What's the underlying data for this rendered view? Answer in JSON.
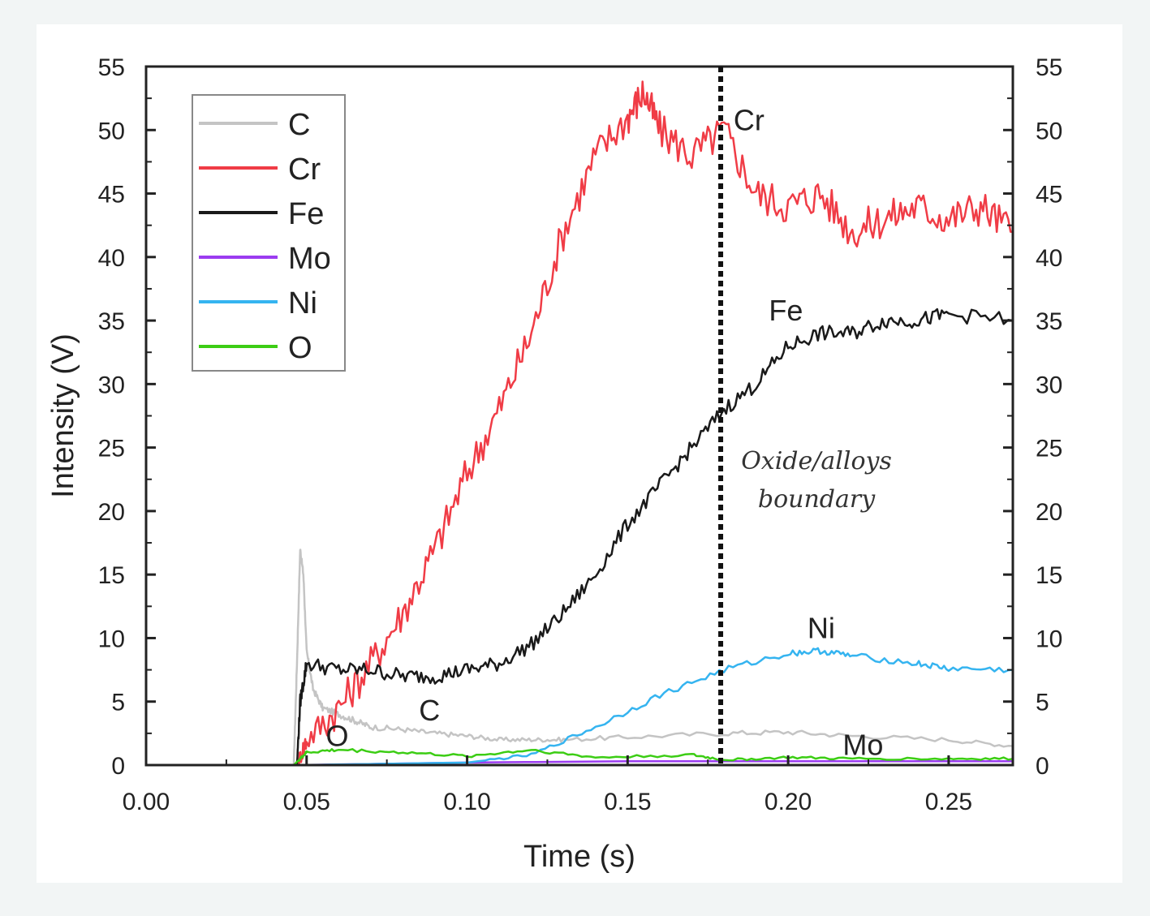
{
  "chart_data": {
    "type": "line",
    "title": "",
    "xlabel": "Time (s)",
    "ylabel": "Intensity (V)",
    "xlim": [
      0.0,
      0.27
    ],
    "ylim": [
      0,
      55
    ],
    "xticks": [
      "0.00",
      "0.05",
      "0.10",
      "0.15",
      "0.20",
      "0.25"
    ],
    "yticks": [
      "0",
      "5",
      "10",
      "15",
      "20",
      "25",
      "30",
      "35",
      "40",
      "45",
      "50",
      "55"
    ],
    "series": [
      {
        "name": "C",
        "color": "#c4c4c4",
        "x": [
          0.046,
          0.047,
          0.048,
          0.049,
          0.05,
          0.052,
          0.055,
          0.06,
          0.065,
          0.07,
          0.08,
          0.09,
          0.1,
          0.11,
          0.12,
          0.13,
          0.15,
          0.18,
          0.2,
          0.22,
          0.25,
          0.27
        ],
        "y": [
          0,
          8,
          17,
          15,
          9,
          6,
          4.5,
          4,
          3.5,
          3,
          2.8,
          2.5,
          2.3,
          2.0,
          2.0,
          2.0,
          2.2,
          2.5,
          2.6,
          2.3,
          2.0,
          1.5
        ]
      },
      {
        "name": "Cr",
        "color": "#f03c46",
        "x": [
          0.047,
          0.05,
          0.06,
          0.07,
          0.08,
          0.09,
          0.1,
          0.11,
          0.12,
          0.13,
          0.14,
          0.15,
          0.155,
          0.16,
          0.17,
          0.18,
          0.19,
          0.2,
          0.21,
          0.22,
          0.23,
          0.24,
          0.25,
          0.26,
          0.27
        ],
        "y": [
          0,
          2,
          4.5,
          8,
          12,
          17,
          23,
          28,
          34,
          42,
          48,
          51,
          53,
          50,
          48,
          50,
          45,
          44,
          45,
          42,
          43,
          44,
          43,
          44,
          42
        ]
      },
      {
        "name": "Fe",
        "color": "#1a1a1a",
        "x": [
          0.047,
          0.048,
          0.05,
          0.06,
          0.07,
          0.08,
          0.09,
          0.1,
          0.11,
          0.12,
          0.13,
          0.14,
          0.15,
          0.16,
          0.17,
          0.18,
          0.19,
          0.2,
          0.21,
          0.22,
          0.23,
          0.24,
          0.25,
          0.27
        ],
        "y": [
          0,
          5,
          8,
          7.5,
          7.5,
          7,
          7,
          7.5,
          8,
          9.5,
          12,
          15,
          19,
          22,
          25,
          28,
          30,
          33,
          34,
          34,
          35,
          35,
          35.5,
          35
        ]
      },
      {
        "name": "Mo",
        "color": "#9b3cf0",
        "x": [
          0.046,
          0.1,
          0.15,
          0.2,
          0.27
        ],
        "y": [
          0,
          0.2,
          0.3,
          0.3,
          0.3
        ]
      },
      {
        "name": "Ni",
        "color": "#35b4f0",
        "x": [
          0.047,
          0.1,
          0.12,
          0.14,
          0.16,
          0.18,
          0.2,
          0.21,
          0.22,
          0.24,
          0.25,
          0.27
        ],
        "y": [
          0,
          0.2,
          0.8,
          3,
          5.5,
          7.5,
          8.8,
          9,
          8.6,
          8,
          7.6,
          7.5
        ]
      },
      {
        "name": "O",
        "color": "#3ccd14",
        "x": [
          0.046,
          0.048,
          0.05,
          0.06,
          0.08,
          0.1,
          0.12,
          0.14,
          0.17,
          0.18,
          0.2,
          0.22,
          0.25,
          0.27
        ],
        "y": [
          0,
          0.5,
          1.0,
          1.2,
          1.0,
          0.7,
          1.2,
          0.6,
          0.8,
          0.4,
          0.6,
          0.5,
          0.5,
          0.5
        ]
      }
    ],
    "legend": {
      "position": "top-left",
      "entries": [
        "C",
        "Cr",
        "Fe",
        "Mo",
        "Ni",
        "O"
      ]
    },
    "series_labels": [
      {
        "text": "Cr",
        "at_x": 0.183,
        "at_y": 50
      },
      {
        "text": "Fe",
        "at_x": 0.194,
        "at_y": 35
      },
      {
        "text": "Ni",
        "at_x": 0.206,
        "at_y": 10
      },
      {
        "text": "C",
        "at_x": 0.085,
        "at_y": 3.5
      },
      {
        "text": "O",
        "at_x": 0.056,
        "at_y": 1.5
      },
      {
        "text": "Mo",
        "at_x": 0.217,
        "at_y": 0.8
      }
    ],
    "boundary": {
      "x": 0.179,
      "label_line1": "Oxide/alloys",
      "label_line2": "boundary"
    }
  }
}
